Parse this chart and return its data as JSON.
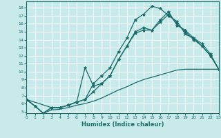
{
  "xlabel": "Humidex (Indice chaleur)",
  "bg_color": "#c8eaea",
  "line_color": "#1a6b6b",
  "grid_color": "#ffffff",
  "xlim": [
    0,
    23
  ],
  "ylim": [
    4.8,
    18.8
  ],
  "yticks": [
    5,
    6,
    7,
    8,
    9,
    10,
    11,
    12,
    13,
    14,
    15,
    16,
    17,
    18
  ],
  "xticks": [
    0,
    1,
    2,
    3,
    4,
    5,
    6,
    7,
    8,
    9,
    10,
    11,
    12,
    13,
    14,
    15,
    16,
    17,
    18,
    19,
    20,
    21,
    22,
    23
  ],
  "curves": [
    {
      "x": [
        0,
        1,
        2,
        3,
        4,
        5,
        6,
        7,
        8,
        9,
        10,
        11,
        12,
        13,
        14,
        15,
        16,
        17,
        18,
        19,
        20,
        21,
        22,
        23
      ],
      "y": [
        6.5,
        5.7,
        4.8,
        5.5,
        5.5,
        5.8,
        6.2,
        6.5,
        8.5,
        9.5,
        10.5,
        12.5,
        14.2,
        16.5,
        17.2,
        18.2,
        17.9,
        17.0,
        16.3,
        14.7,
        14.2,
        13.2,
        12.0,
        10.3
      ],
      "linestyle": "-",
      "marker": "*",
      "markersize": 3.5,
      "linewidth": 0.9
    },
    {
      "x": [
        0,
        1,
        2,
        3,
        4,
        5,
        6,
        7,
        8,
        9,
        10,
        11,
        12,
        13,
        14,
        15,
        16,
        17,
        18,
        19,
        20,
        21,
        22,
        23
      ],
      "y": [
        6.5,
        5.7,
        4.8,
        5.5,
        5.5,
        5.8,
        6.2,
        6.5,
        7.5,
        8.5,
        9.5,
        11.5,
        13.2,
        15.0,
        15.5,
        15.2,
        16.5,
        17.5,
        15.8,
        15.2,
        14.2,
        13.5,
        12.2,
        10.3
      ],
      "linestyle": "-",
      "marker": "*",
      "markersize": 3.5,
      "linewidth": 0.9
    },
    {
      "x": [
        0,
        3,
        4,
        5,
        6,
        7,
        8,
        9,
        10,
        11,
        12,
        13,
        14,
        15,
        16,
        17,
        18,
        19,
        20,
        21,
        22,
        23
      ],
      "y": [
        6.5,
        5.5,
        5.5,
        5.8,
        6.2,
        10.5,
        8.2,
        8.5,
        9.5,
        11.5,
        13.2,
        14.8,
        15.2,
        15.2,
        16.2,
        17.2,
        16.0,
        15.0,
        14.0,
        13.2,
        12.0,
        10.3
      ],
      "linestyle": "-",
      "marker": "*",
      "markersize": 3.5,
      "linewidth": 0.9
    },
    {
      "x": [
        0,
        1,
        2,
        3,
        4,
        5,
        6,
        7,
        8,
        9,
        10,
        11,
        12,
        13,
        14,
        15,
        16,
        17,
        18,
        19,
        20,
        21,
        22,
        23
      ],
      "y": [
        6.5,
        5.7,
        4.8,
        5.2,
        5.3,
        5.5,
        5.8,
        6.0,
        6.3,
        6.7,
        7.2,
        7.7,
        8.1,
        8.6,
        9.0,
        9.3,
        9.6,
        9.9,
        10.2,
        10.3,
        10.3,
        10.3,
        10.3,
        10.3
      ],
      "linestyle": "-",
      "marker": null,
      "markersize": 0,
      "linewidth": 0.9
    }
  ]
}
